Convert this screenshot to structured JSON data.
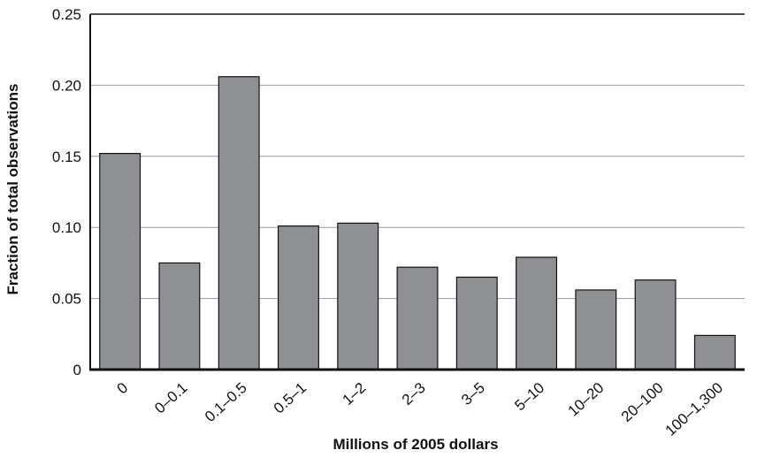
{
  "chart_data": {
    "type": "bar",
    "title": "",
    "xlabel": "Millions of 2005 dollars",
    "ylabel": "Fraction of total observations",
    "categories": [
      "0",
      "0–0.1",
      "0.1–0.5",
      "0.5–1",
      "1–2",
      "2–3",
      "3–5",
      "5–10",
      "10–20",
      "20–100",
      "100–1,300"
    ],
    "values": [
      0.152,
      0.075,
      0.206,
      0.101,
      0.103,
      0.072,
      0.065,
      0.079,
      0.056,
      0.063,
      0.024
    ],
    "ylim": [
      0,
      0.25
    ],
    "yticks": [
      0,
      0.05,
      0.1,
      0.15,
      0.2,
      0.25
    ],
    "ytick_labels": [
      "0",
      "0.05",
      "0.10",
      "0.15",
      "0.20",
      "0.25"
    ],
    "grid": "horizontal",
    "bar_color": "#8f9094",
    "bar_edge_color": "#111111",
    "grid_color": "#9a9a9a"
  }
}
